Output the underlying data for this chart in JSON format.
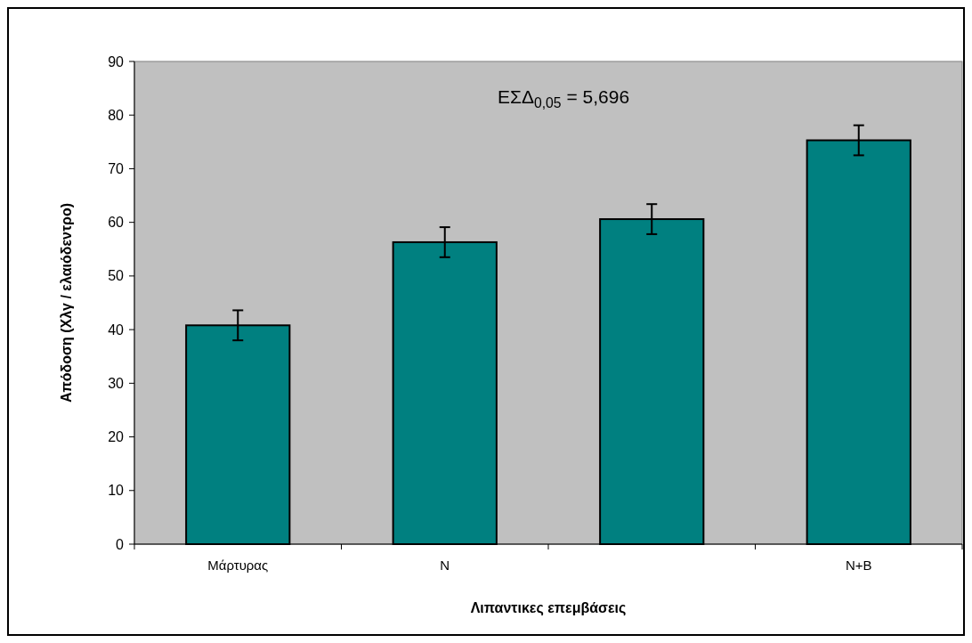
{
  "chart_data": {
    "type": "bar",
    "xlabel": "Λιπαντικες επεμβάσεις",
    "ylabel": "Απόδοση (Χλγ / ελαιόδεντρο)",
    "categories": [
      "Μάρτυρας",
      "N",
      null,
      "N+B"
    ],
    "values": [
      40.8,
      56.3,
      60.6,
      75.3
    ],
    "errors": [
      2.8,
      2.8,
      2.8,
      2.8
    ],
    "color": "#008080",
    "ylim": [
      0,
      90
    ],
    "yticks": [
      0,
      10,
      20,
      30,
      40,
      50,
      60,
      70,
      80,
      90
    ],
    "grid": false,
    "annotations": [
      "ΕΣΔ$_{0,05}$ = 5,696"
    ]
  }
}
